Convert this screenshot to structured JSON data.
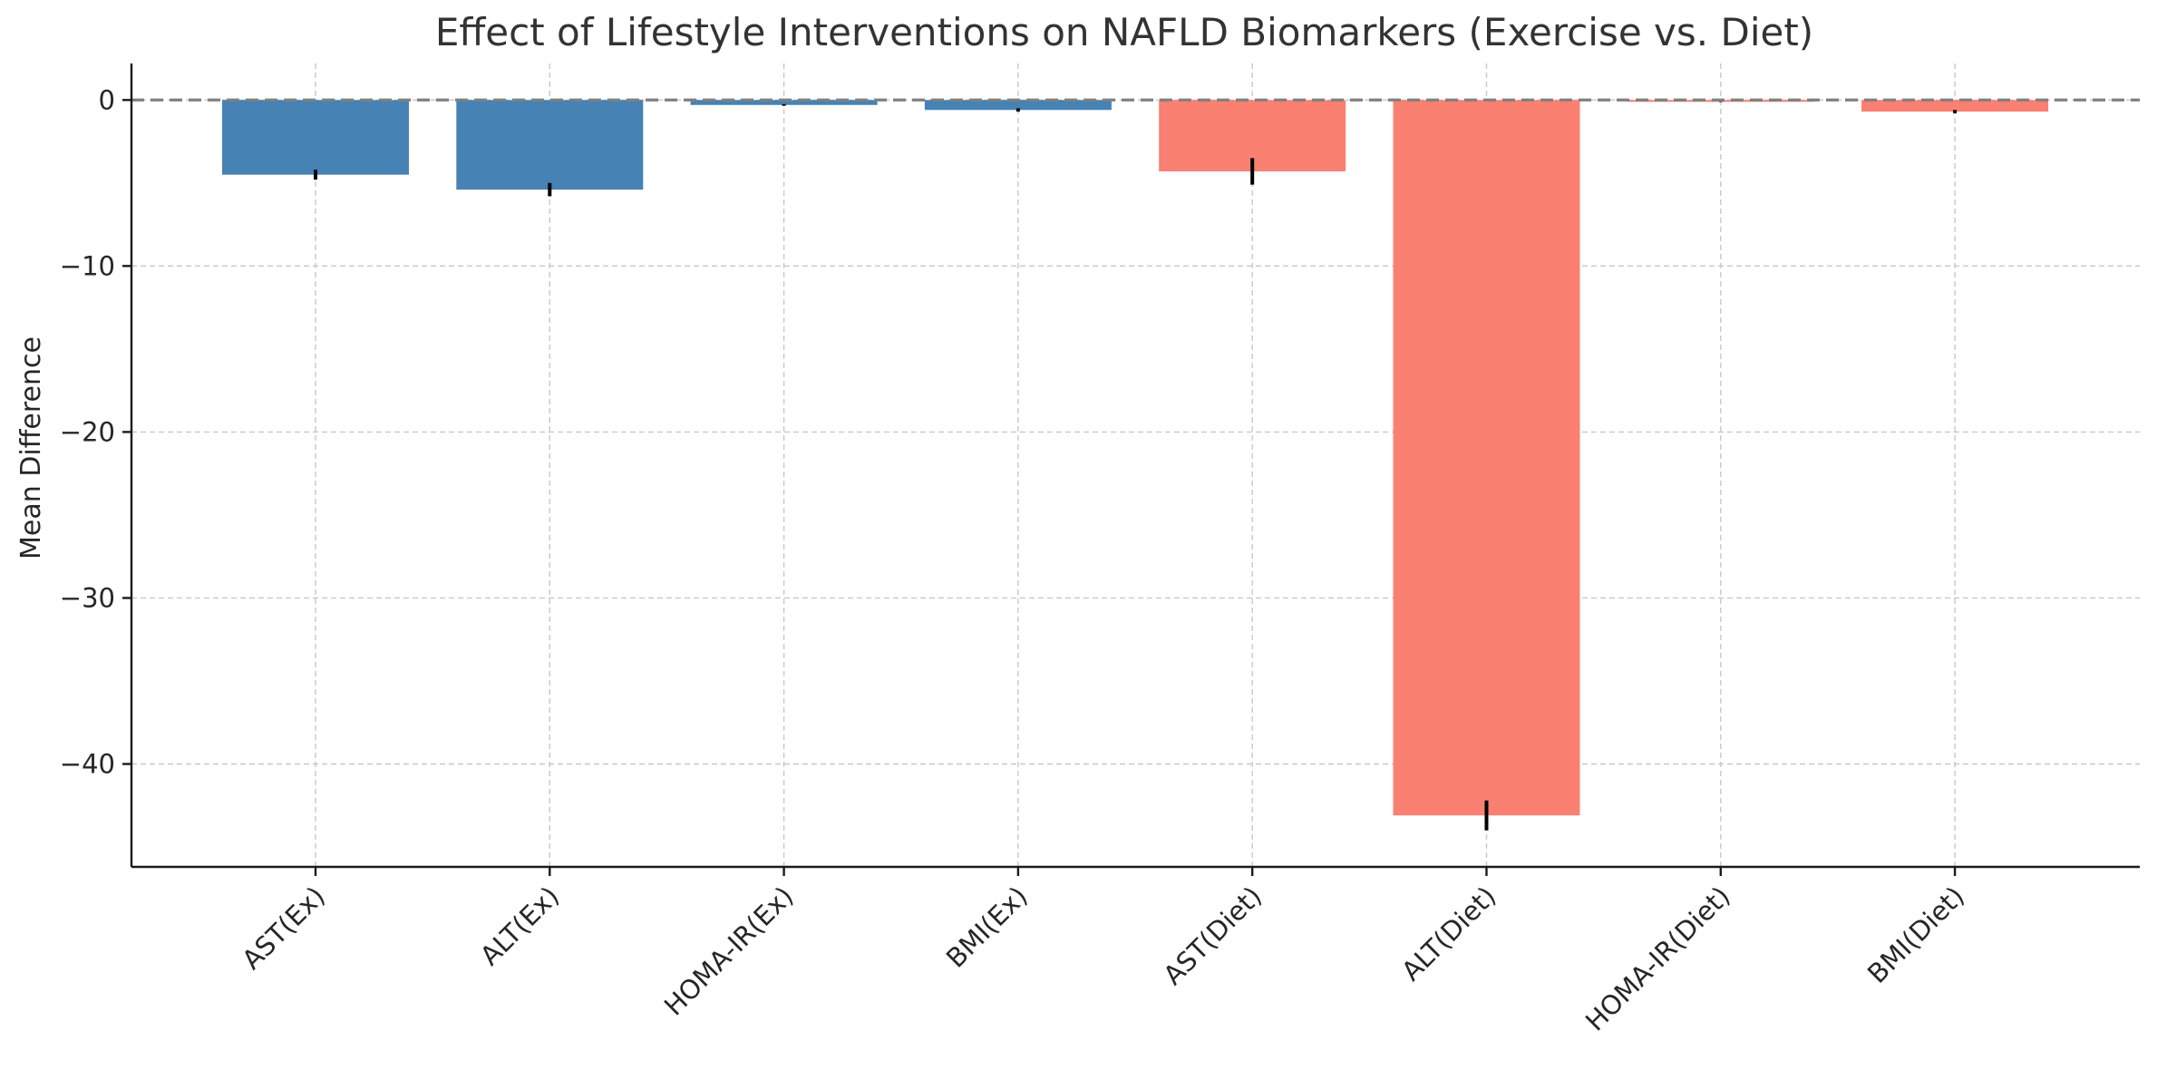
{
  "chart_data": {
    "type": "bar",
    "title": "Effect of Lifestyle Interventions on NAFLD Biomarkers (Exercise vs. Diet)",
    "xlabel": "",
    "ylabel": "Mean Difference",
    "categories": [
      "AST(Ex)",
      "ALT(Ex)",
      "HOMA-IR(Ex)",
      "BMI(Ex)",
      "AST(Diet)",
      "ALT(Diet)",
      "HOMA-IR(Diet)",
      "BMI(Diet)"
    ],
    "values": [
      -4.5,
      -5.4,
      -0.3,
      -0.6,
      -4.3,
      -43.1,
      -0.1,
      -0.7
    ],
    "error": [
      0.3,
      0.4,
      0.05,
      0.1,
      0.8,
      0.9,
      0.02,
      0.1
    ],
    "bar_colors": [
      "#4682b4",
      "#4682b4",
      "#4682b4",
      "#4682b4",
      "#fa8072",
      "#fa8072",
      "#fa8072",
      "#fa8072"
    ],
    "ylim": [
      -46.2,
      2.2
    ],
    "yticks": [
      0,
      -10,
      -20,
      -30,
      -40
    ],
    "ytick_labels": [
      "0",
      "−10",
      "−20",
      "−30",
      "−40"
    ],
    "reference_line": 0,
    "grid": true
  }
}
